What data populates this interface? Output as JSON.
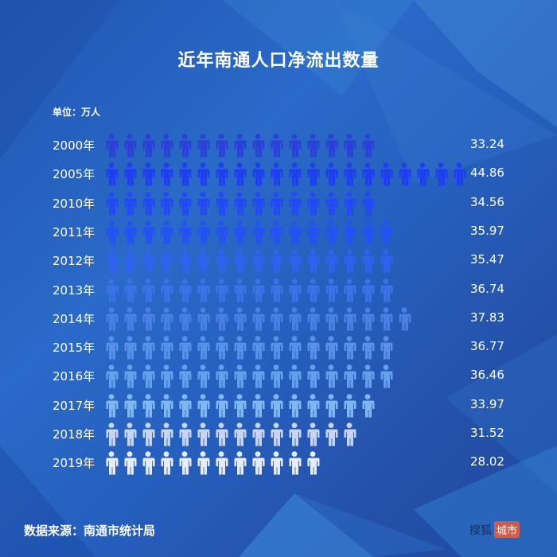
{
  "title": "近年南通人口净流出数量",
  "unit_label": "单位：万人",
  "source": "数据来源：南通市统计局",
  "logo": {
    "part1": "搜狐",
    "part2": "城市"
  },
  "chart_data": {
    "type": "pictogram-bar",
    "title": "近年南通人口净流出数量",
    "unit": "万人",
    "categories": [
      "2000年",
      "2005年",
      "2010年",
      "2011年",
      "2012年",
      "2013年",
      "2014年",
      "2015年",
      "2016年",
      "2017年",
      "2018年",
      "2019年"
    ],
    "values": [
      33.24,
      44.86,
      34.56,
      35.97,
      35.47,
      36.74,
      37.83,
      36.77,
      36.46,
      33.97,
      31.52,
      28.02
    ],
    "icon_counts": [
      15,
      20,
      15,
      16,
      16,
      16,
      17,
      16,
      16,
      15,
      14,
      12
    ],
    "icon_colors": [
      "#2a40d8",
      "#1f3ef2",
      "#2348f5",
      "#2450f5",
      "#2f62ee",
      "#3b72e8",
      "#4a80e4",
      "#5690e8",
      "#62a0ec",
      "#80b6f2",
      "#c8d4f4",
      "#e8ecfa"
    ]
  },
  "rows": [
    {
      "year": "2000年",
      "value": "33.24"
    },
    {
      "year": "2005年",
      "value": "44.86"
    },
    {
      "year": "2010年",
      "value": "34.56"
    },
    {
      "year": "2011年",
      "value": "35.97"
    },
    {
      "year": "2012年",
      "value": "35.47"
    },
    {
      "year": "2013年",
      "value": "36.74"
    },
    {
      "year": "2014年",
      "value": "37.83"
    },
    {
      "year": "2015年",
      "value": "36.77"
    },
    {
      "year": "2016年",
      "value": "36.46"
    },
    {
      "year": "2017年",
      "value": "33.97"
    },
    {
      "year": "2018年",
      "value": "31.52"
    },
    {
      "year": "2019年",
      "value": "28.02"
    }
  ]
}
